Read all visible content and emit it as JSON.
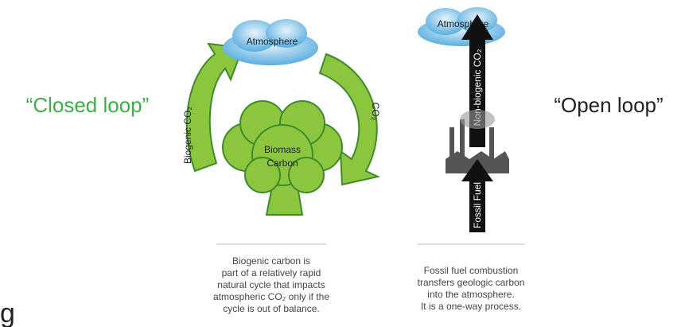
{
  "left_label": "“Closed loop”",
  "right_label": "“Open loop”",
  "closed_loop": {
    "cloud": "Atmosphere",
    "left_arrow": "Biogenic CO₂",
    "right_arrow": "CO₂",
    "tree": [
      "Biomass",
      "Carbon"
    ],
    "caption": [
      "Biogenic carbon is",
      "part of a relatively rapid",
      "natural cycle that impacts",
      "atmospheric CO₂ only if the",
      "cycle is out of balance."
    ]
  },
  "open_loop": {
    "cloud": "Atmosphere",
    "up_arrow": "Non-biogenic CO₂",
    "bottom_arrow": "Fossil Fuel",
    "caption": [
      "Fossil fuel combustion",
      "transfers geologic carbon",
      "into the atmosphere.",
      "It is a one-way process."
    ]
  },
  "fragment": "g"
}
